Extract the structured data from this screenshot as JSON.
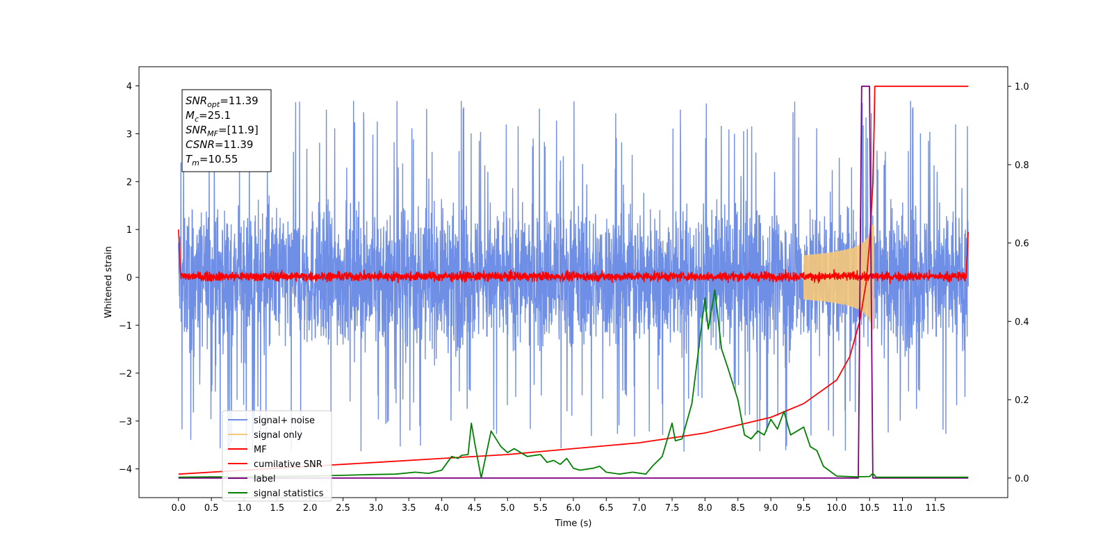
{
  "chart_data": {
    "type": "line",
    "xlabel": "Time (s)",
    "ylabel": "Whitened strain",
    "xlim": [
      -0.6,
      12.6
    ],
    "ylim": [
      -4.6,
      4.4
    ],
    "ylim_right": [
      -0.05,
      1.05
    ],
    "xticks": [
      "0.0",
      "0.5",
      "1.0",
      "1.5",
      "2.0",
      "2.5",
      "3.0",
      "3.5",
      "4.0",
      "4.5",
      "5.0",
      "5.5",
      "6.0",
      "6.5",
      "7.0",
      "7.5",
      "8.0",
      "8.5",
      "9.0",
      "9.5",
      "10.0",
      "10.5",
      "11.0",
      "11.5"
    ],
    "yticks_left": [
      "4",
      "3",
      "2",
      "1",
      "0",
      "−1",
      "−2",
      "−3",
      "−4"
    ],
    "yticks_right": [
      "1.0",
      "0.8",
      "0.6",
      "0.4",
      "0.2",
      "0.0"
    ],
    "annotation": {
      "lines": [
        {
          "main": "SNR",
          "sub": "opt",
          "value": "=11.39"
        },
        {
          "main": "M",
          "sub": "c",
          "value": "=25.1"
        },
        {
          "main": "SNR",
          "sub": "MF",
          "value": "=[11.9]"
        },
        {
          "main": "CSNR",
          "sub": "",
          "value": "=11.39"
        },
        {
          "main": "T",
          "sub": "m",
          "value": "=10.55"
        }
      ]
    },
    "legend_position": "lower-left",
    "series": [
      {
        "name": "signal+ noise",
        "color": "#6f8ee6",
        "axis": "left",
        "description_shape": "noise_band",
        "x_range": [
          0.0,
          12.0
        ],
        "typical_range": [
          -2.0,
          2.2
        ],
        "max": 3.9,
        "min": -4.2
      },
      {
        "name": "signal only",
        "color": "#f5c87a",
        "axis": "left",
        "chirp": {
          "start": 9.5,
          "peak_time": 10.55,
          "peak_amplitude": 1.0
        }
      },
      {
        "name": "MF",
        "color": "#ff0000",
        "axis": "left",
        "x_range": [
          0.0,
          12.0
        ],
        "typical_range": [
          -0.1,
          0.15
        ],
        "edge_values": [
          1.0,
          0.95
        ]
      },
      {
        "name": "cumilative SNR",
        "color": "#ff0000",
        "axis": "right",
        "points": [
          [
            0.0,
            0.01
          ],
          [
            1.0,
            0.02
          ],
          [
            2.0,
            0.03
          ],
          [
            3.0,
            0.04
          ],
          [
            4.0,
            0.05
          ],
          [
            5.0,
            0.06
          ],
          [
            6.0,
            0.075
          ],
          [
            7.0,
            0.09
          ],
          [
            8.0,
            0.115
          ],
          [
            8.5,
            0.135
          ],
          [
            9.0,
            0.155
          ],
          [
            9.5,
            0.19
          ],
          [
            10.0,
            0.25
          ],
          [
            10.2,
            0.31
          ],
          [
            10.35,
            0.4
          ],
          [
            10.45,
            0.5
          ],
          [
            10.5,
            0.6
          ],
          [
            10.55,
            0.75
          ],
          [
            10.57,
            0.9
          ],
          [
            10.58,
            1.0
          ],
          [
            12.0,
            1.0
          ]
        ]
      },
      {
        "name": "label",
        "color": "#800080",
        "axis": "right",
        "points": [
          [
            0.0,
            0.0
          ],
          [
            10.33,
            0.0
          ],
          [
            10.38,
            1.0
          ],
          [
            10.5,
            1.0
          ],
          [
            10.55,
            0.0
          ],
          [
            12.0,
            0.0
          ]
        ]
      },
      {
        "name": "signal statistics",
        "color": "#008000",
        "axis": "right",
        "points": [
          [
            0.0,
            0.002
          ],
          [
            0.5,
            0.003
          ],
          [
            1.0,
            0.003
          ],
          [
            1.5,
            0.004
          ],
          [
            2.0,
            0.005
          ],
          [
            2.5,
            0.007
          ],
          [
            3.0,
            0.009
          ],
          [
            3.3,
            0.01
          ],
          [
            3.6,
            0.015
          ],
          [
            3.8,
            0.012
          ],
          [
            4.0,
            0.02
          ],
          [
            4.15,
            0.055
          ],
          [
            4.25,
            0.05
          ],
          [
            4.3,
            0.058
          ],
          [
            4.4,
            0.06
          ],
          [
            4.45,
            0.14
          ],
          [
            4.5,
            0.09
          ],
          [
            4.6,
            0.0
          ],
          [
            4.75,
            0.12
          ],
          [
            4.9,
            0.08
          ],
          [
            5.0,
            0.065
          ],
          [
            5.1,
            0.075
          ],
          [
            5.2,
            0.065
          ],
          [
            5.3,
            0.055
          ],
          [
            5.5,
            0.06
          ],
          [
            5.6,
            0.04
          ],
          [
            5.7,
            0.045
          ],
          [
            5.8,
            0.035
          ],
          [
            5.9,
            0.05
          ],
          [
            6.0,
            0.025
          ],
          [
            6.1,
            0.02
          ],
          [
            6.3,
            0.025
          ],
          [
            6.4,
            0.03
          ],
          [
            6.5,
            0.015
          ],
          [
            6.7,
            0.01
          ],
          [
            6.9,
            0.015
          ],
          [
            7.1,
            0.01
          ],
          [
            7.2,
            0.03
          ],
          [
            7.35,
            0.055
          ],
          [
            7.5,
            0.14
          ],
          [
            7.55,
            0.095
          ],
          [
            7.65,
            0.1
          ],
          [
            7.8,
            0.19
          ],
          [
            8.0,
            0.46
          ],
          [
            8.05,
            0.38
          ],
          [
            8.15,
            0.48
          ],
          [
            8.25,
            0.33
          ],
          [
            8.35,
            0.28
          ],
          [
            8.5,
            0.2
          ],
          [
            8.6,
            0.11
          ],
          [
            8.7,
            0.1
          ],
          [
            8.8,
            0.12
          ],
          [
            8.9,
            0.11
          ],
          [
            9.0,
            0.15
          ],
          [
            9.1,
            0.125
          ],
          [
            9.2,
            0.17
          ],
          [
            9.3,
            0.11
          ],
          [
            9.4,
            0.12
          ],
          [
            9.5,
            0.13
          ],
          [
            9.6,
            0.08
          ],
          [
            9.7,
            0.07
          ],
          [
            9.8,
            0.03
          ],
          [
            10.0,
            0.005
          ],
          [
            10.3,
            0.003
          ],
          [
            10.5,
            0.004
          ],
          [
            10.55,
            0.012
          ],
          [
            10.6,
            0.002
          ],
          [
            11.0,
            0.002
          ],
          [
            12.0,
            0.002
          ]
        ]
      }
    ]
  }
}
